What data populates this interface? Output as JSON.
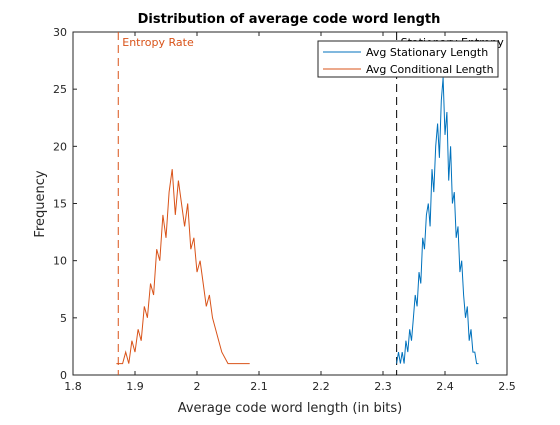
{
  "chart_data": {
    "type": "line",
    "title": "Distribution of average code word length",
    "xlabel": "Average code word length (in bits)",
    "ylabel": "Frequency",
    "xlim": [
      1.8,
      2.5
    ],
    "ylim": [
      0,
      30
    ],
    "x_ticks": [
      "1.8",
      "1.9",
      "2",
      "2.1",
      "2.2",
      "2.3",
      "2.4",
      "2.5"
    ],
    "y_ticks": [
      "0",
      "5",
      "10",
      "15",
      "20",
      "25",
      "30"
    ],
    "grid": false,
    "legend_position": "top-right",
    "series": [
      {
        "name": "Avg Stationary Length",
        "color": "#0072BD",
        "x": [
          2.322,
          2.325,
          2.328,
          2.331,
          2.334,
          2.337,
          2.34,
          2.343,
          2.346,
          2.349,
          2.352,
          2.355,
          2.358,
          2.361,
          2.364,
          2.367,
          2.37,
          2.373,
          2.376,
          2.379,
          2.382,
          2.385,
          2.388,
          2.391,
          2.394,
          2.397,
          2.4,
          2.403,
          2.406,
          2.409,
          2.412,
          2.415,
          2.418,
          2.421,
          2.424,
          2.427,
          2.43,
          2.433,
          2.436,
          2.439,
          2.442,
          2.445,
          2.448,
          2.451,
          2.454
        ],
        "y": [
          1,
          2,
          1,
          2,
          1,
          3,
          2,
          4,
          3,
          5,
          7,
          6,
          9,
          8,
          12,
          11,
          14,
          15,
          13,
          18,
          16,
          20,
          22,
          19,
          24,
          26,
          21,
          23,
          17,
          20,
          15,
          16,
          12,
          13,
          9,
          10,
          7,
          5,
          6,
          3,
          4,
          2,
          2,
          1,
          1
        ]
      },
      {
        "name": "Avg Conditional Length",
        "color": "#D95319",
        "x": [
          1.87,
          1.875,
          1.88,
          1.885,
          1.89,
          1.895,
          1.9,
          1.905,
          1.91,
          1.915,
          1.92,
          1.925,
          1.93,
          1.935,
          1.94,
          1.945,
          1.95,
          1.955,
          1.96,
          1.965,
          1.97,
          1.975,
          1.98,
          1.985,
          1.99,
          1.995,
          2.0,
          2.005,
          2.01,
          2.015,
          2.02,
          2.025,
          2.03,
          2.035,
          2.04,
          2.05,
          2.06,
          2.07,
          2.085
        ],
        "y": [
          1,
          1,
          1,
          2,
          1,
          3,
          2,
          4,
          3,
          6,
          5,
          8,
          7,
          11,
          10,
          14,
          12,
          16,
          18,
          14,
          17,
          15,
          13,
          15,
          11,
          12,
          9,
          10,
          8,
          6,
          7,
          5,
          4,
          3,
          2,
          1,
          1,
          1,
          1
        ]
      }
    ],
    "reference_lines": [
      {
        "label": "Entropy Rate",
        "x": 1.873,
        "color": "#D95319",
        "style": "dashed"
      },
      {
        "label": "Stationary Entropy",
        "x": 2.322,
        "color": "#000000",
        "style": "dashed"
      }
    ]
  }
}
